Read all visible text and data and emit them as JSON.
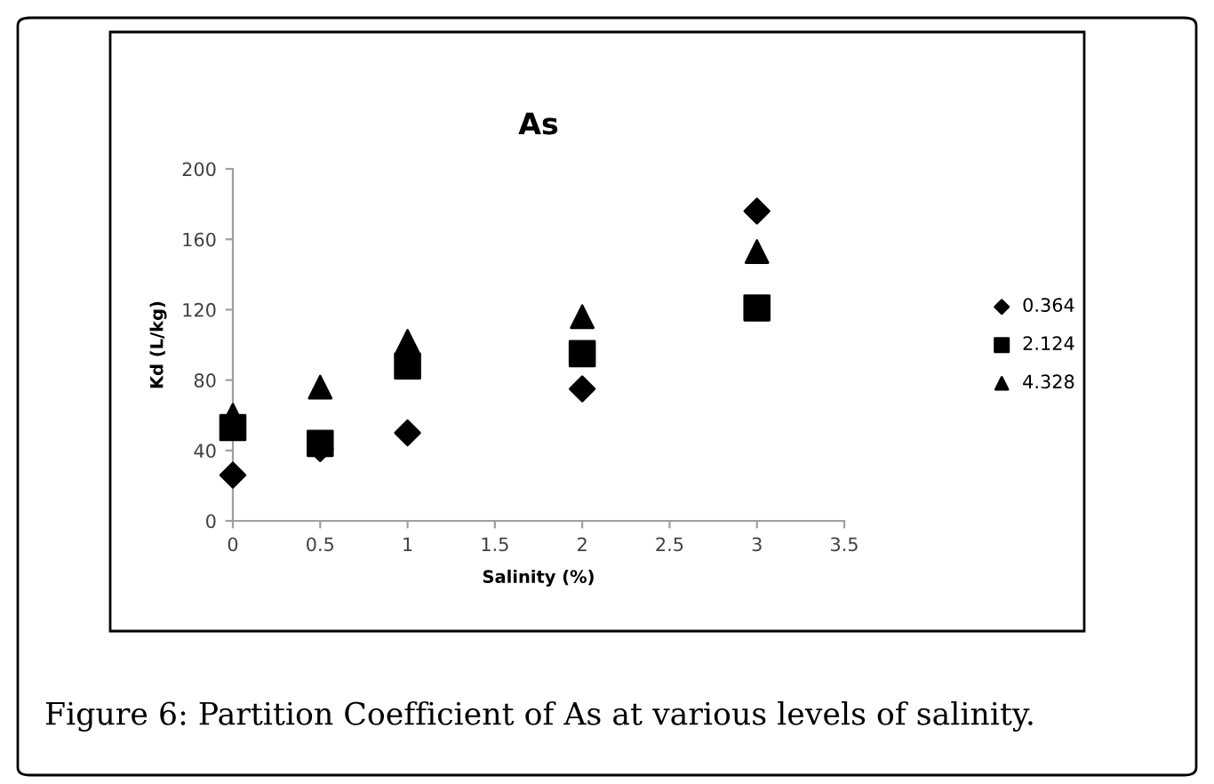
{
  "chart_data": {
    "type": "scatter",
    "title": "As",
    "xlabel": "Salinity (%)",
    "ylabel": "Kd (L/kg)",
    "x": [
      0,
      0.5,
      1,
      2,
      3
    ],
    "series": [
      {
        "name": "0.364",
        "color": "#000000",
        "marker": "diamond",
        "values": [
          26,
          41,
          50,
          75,
          176
        ]
      },
      {
        "name": "2.124",
        "color": "#000000",
        "marker": "square",
        "values": [
          53,
          44,
          88,
          95,
          121
        ]
      },
      {
        "name": "4.328",
        "color": "#000000",
        "marker": "triangle",
        "values": [
          60,
          76,
          102,
          116,
          153
        ]
      }
    ],
    "xlim": [
      0,
      3.5
    ],
    "xticks": [
      0,
      0.5,
      1,
      1.5,
      2,
      2.5,
      3,
      3.5
    ],
    "ylim": [
      0,
      200
    ],
    "yticks": [
      0,
      40,
      80,
      120,
      160,
      200
    ],
    "grid": false,
    "legend": "right",
    "annotations": [
      "Figure 6: Partition Coefficient of As at various levels of salinity."
    ]
  }
}
